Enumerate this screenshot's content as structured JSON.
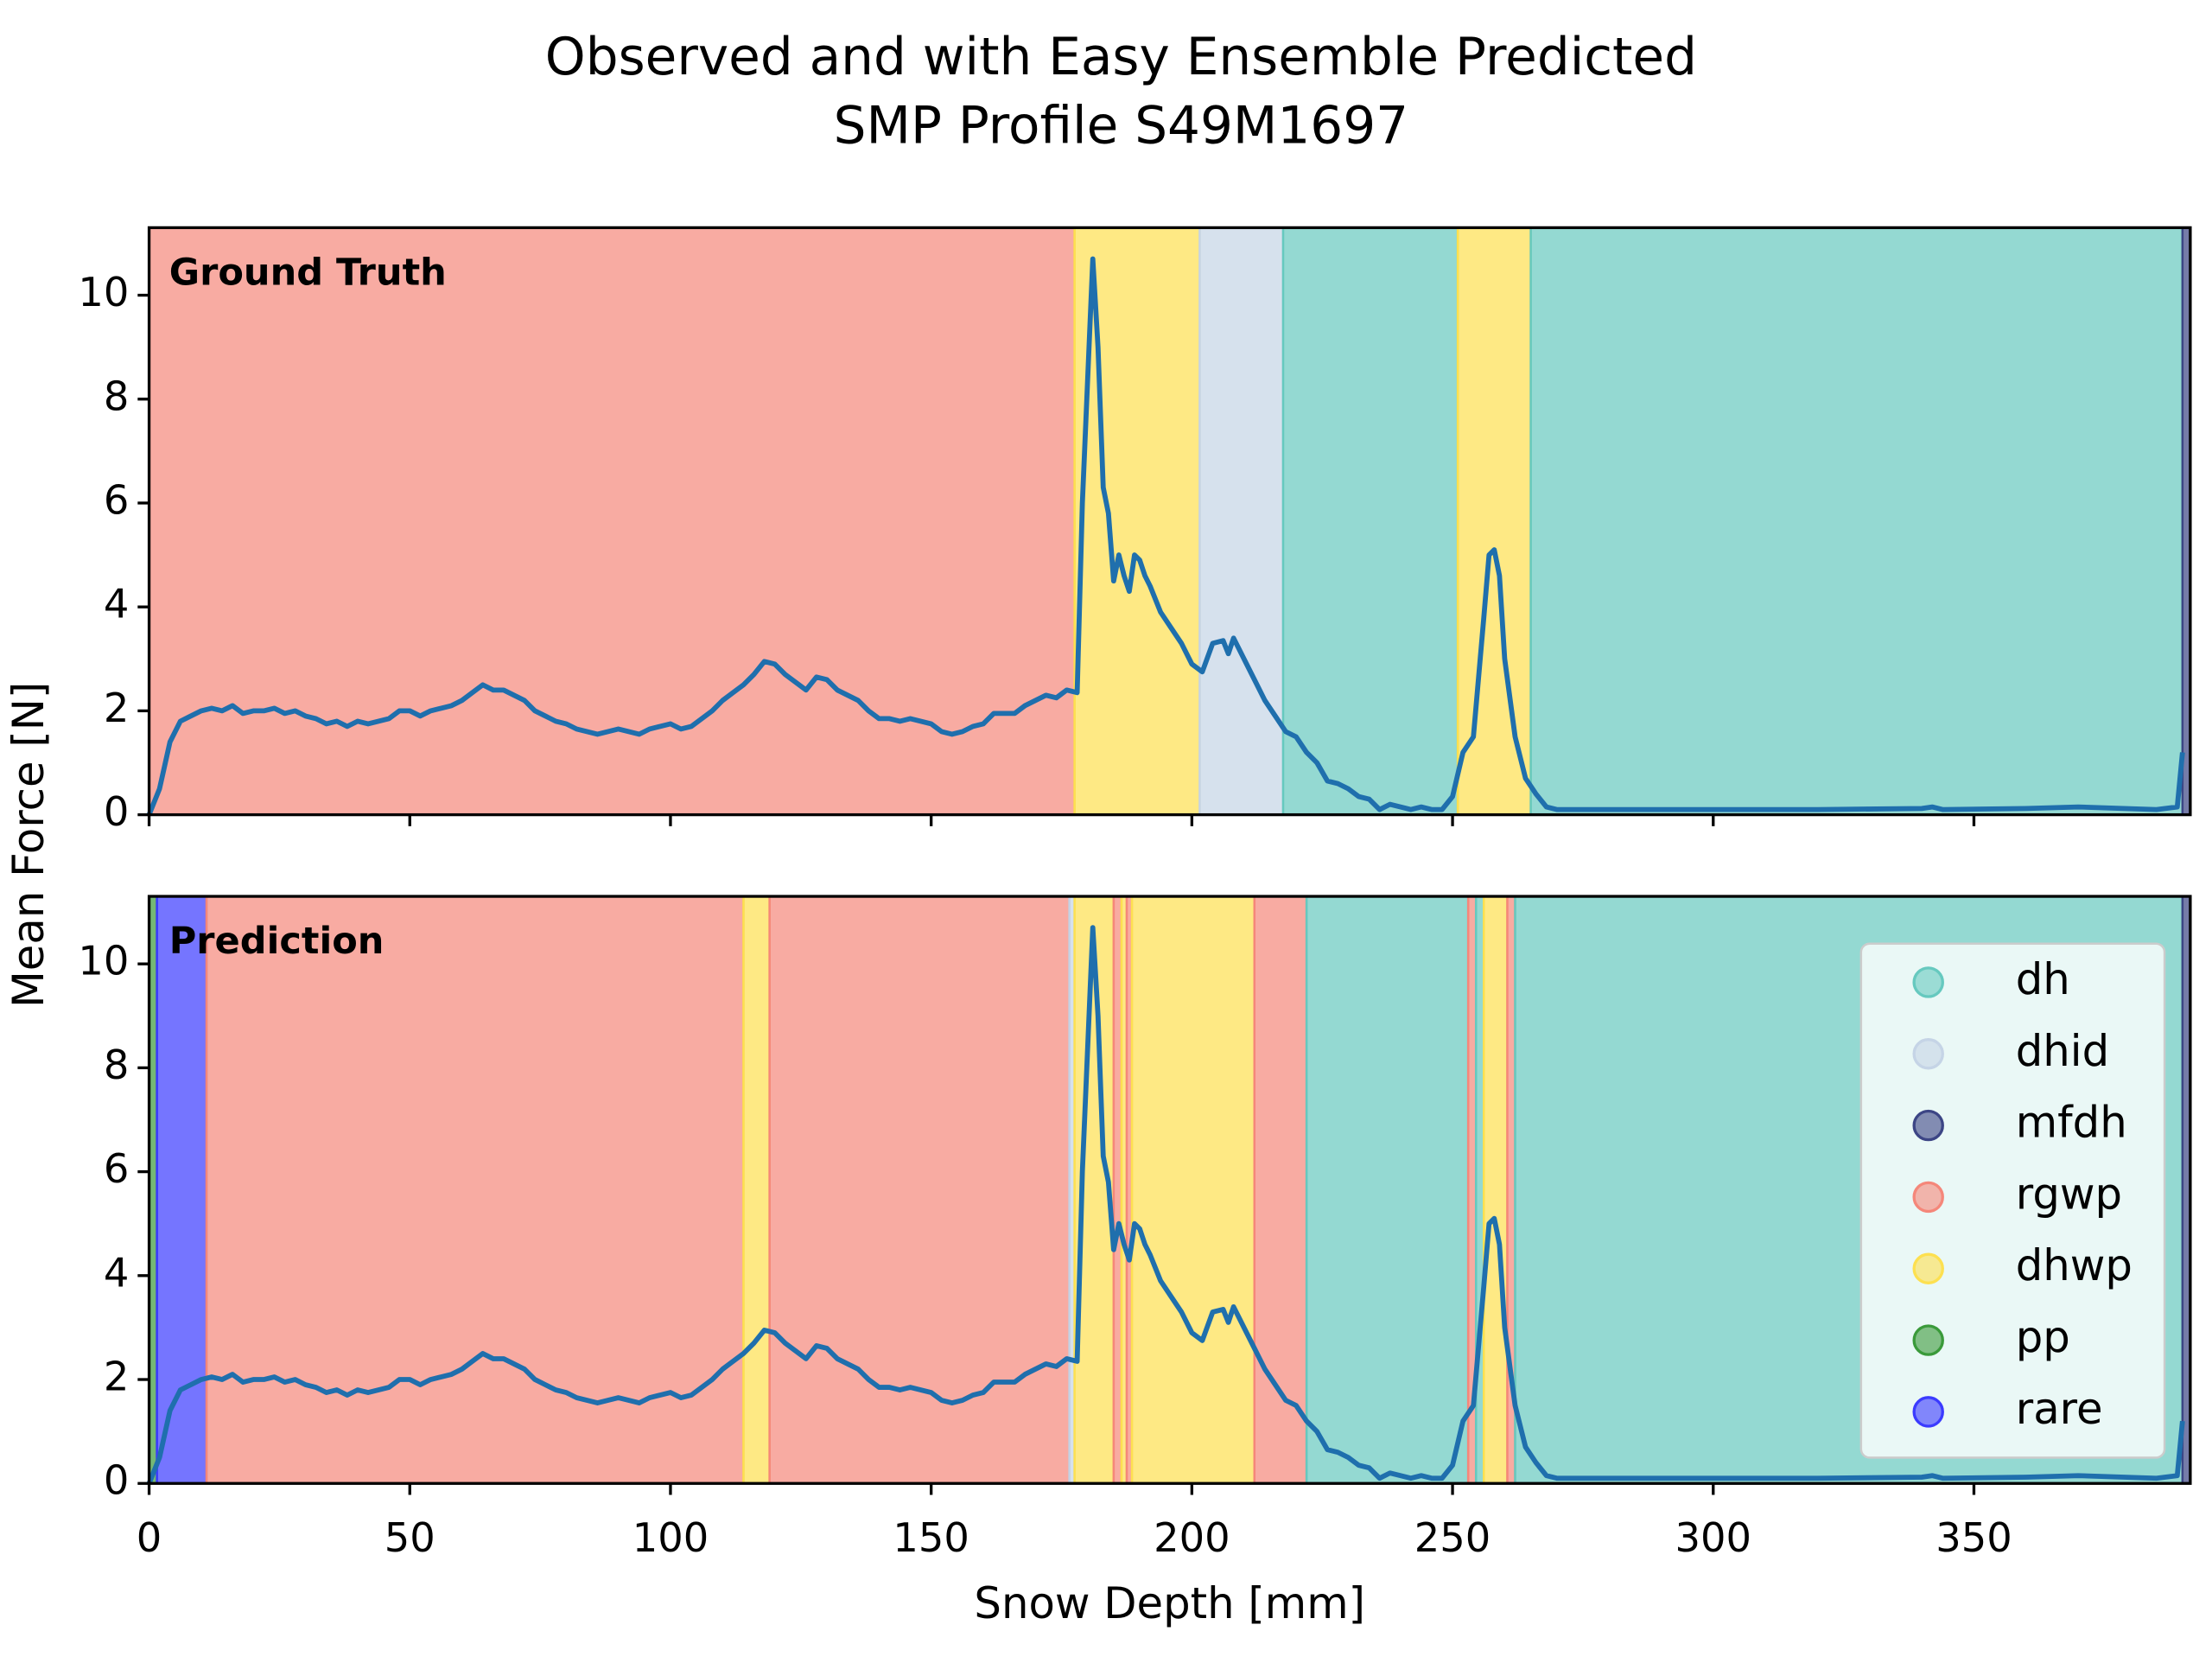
{
  "title": [
    "Observed and with Easy Ensemble Predicted",
    "SMP Profile S49M1697"
  ],
  "xlabel": "Snow Depth [mm]",
  "ylabel": "Mean Force [N]",
  "chart_data": [
    {
      "type": "line",
      "title": "Ground Truth",
      "xlim": [
        0,
        391.5
      ],
      "ylim": [
        0,
        11.3
      ],
      "xticks": [
        0,
        50,
        100,
        150,
        200,
        250,
        300,
        350
      ],
      "yticks": [
        0,
        2,
        4,
        6,
        8,
        10
      ],
      "segments": [
        {
          "start": 0,
          "end": 177.5,
          "class": "rgwp"
        },
        {
          "start": 177.5,
          "end": 201.5,
          "class": "dhwp"
        },
        {
          "start": 201.5,
          "end": 217.5,
          "class": "dhid"
        },
        {
          "start": 217.5,
          "end": 251,
          "class": "dh"
        },
        {
          "start": 251,
          "end": 265,
          "class": "dhwp"
        },
        {
          "start": 265,
          "end": 390,
          "class": "dh"
        },
        {
          "start": 390,
          "end": 391.5,
          "class": "mfdh"
        }
      ],
      "series": [
        {
          "color": "#1f6fad",
          "x": [
            0,
            2,
            4,
            6,
            8,
            10,
            12,
            14,
            16,
            18,
            20,
            22,
            24,
            26,
            28,
            30,
            32,
            34,
            36,
            38,
            40,
            42,
            44,
            46,
            48,
            50,
            52,
            54,
            56,
            58,
            60,
            62,
            64,
            66,
            68,
            70,
            72,
            74,
            76,
            78,
            80,
            82,
            84,
            86,
            88,
            90,
            92,
            94,
            96,
            98,
            100,
            102,
            104,
            106,
            108,
            110,
            112,
            114,
            116,
            118,
            120,
            122,
            124,
            126,
            128,
            130,
            132,
            134,
            136,
            138,
            140,
            142,
            144,
            146,
            148,
            150,
            152,
            154,
            156,
            158,
            160,
            162,
            164,
            166,
            168,
            170,
            172,
            174,
            176,
            178,
            179,
            181,
            182,
            183,
            184,
            185,
            186,
            187,
            188,
            189,
            190,
            191,
            192,
            194,
            196,
            198,
            200,
            202,
            204,
            206,
            207,
            208,
            210,
            212,
            214,
            216,
            218,
            220,
            222,
            224,
            226,
            228,
            230,
            232,
            234,
            236,
            238,
            240,
            242,
            244,
            246,
            248,
            250,
            252,
            254,
            256,
            257,
            258,
            259,
            260,
            262,
            264,
            266,
            268,
            270,
            280,
            300,
            320,
            340,
            342,
            344,
            360,
            370,
            385,
            389,
            390
          ],
          "values": [
            0.0,
            0.5,
            1.4,
            1.8,
            1.9,
            2.0,
            2.05,
            2.0,
            2.1,
            1.95,
            2.0,
            2.0,
            2.05,
            1.95,
            2.0,
            1.9,
            1.85,
            1.75,
            1.8,
            1.7,
            1.8,
            1.75,
            1.8,
            1.85,
            2.0,
            2.0,
            1.9,
            2.0,
            2.05,
            2.1,
            2.2,
            2.35,
            2.5,
            2.4,
            2.4,
            2.3,
            2.2,
            2.0,
            1.9,
            1.8,
            1.75,
            1.65,
            1.6,
            1.55,
            1.6,
            1.65,
            1.6,
            1.55,
            1.65,
            1.7,
            1.75,
            1.65,
            1.7,
            1.85,
            2.0,
            2.2,
            2.35,
            2.5,
            2.7,
            2.95,
            2.9,
            2.7,
            2.55,
            2.4,
            2.65,
            2.6,
            2.4,
            2.3,
            2.2,
            2.0,
            1.85,
            1.85,
            1.8,
            1.85,
            1.8,
            1.75,
            1.6,
            1.55,
            1.6,
            1.7,
            1.75,
            1.95,
            1.95,
            1.95,
            2.1,
            2.2,
            2.3,
            2.25,
            2.4,
            2.35,
            6.0,
            10.7,
            9.0,
            6.3,
            5.8,
            4.5,
            5.0,
            4.6,
            4.3,
            5.0,
            4.9,
            4.6,
            4.4,
            3.9,
            3.6,
            3.3,
            2.9,
            2.75,
            3.3,
            3.35,
            3.1,
            3.4,
            3.0,
            2.6,
            2.2,
            1.9,
            1.6,
            1.5,
            1.2,
            1.0,
            0.65,
            0.6,
            0.5,
            0.35,
            0.3,
            0.1,
            0.2,
            0.15,
            0.1,
            0.15,
            0.1,
            0.1,
            0.35,
            1.2,
            1.5,
            3.8,
            5.0,
            5.1,
            4.6,
            3.0,
            1.5,
            0.7,
            0.4,
            0.15,
            0.1,
            0.1,
            0.1,
            0.1,
            0.12,
            0.15,
            0.1,
            0.12,
            0.15,
            0.1,
            0.15,
            1.2
          ]
        }
      ]
    },
    {
      "type": "line",
      "title": "Prediction",
      "xlim": [
        0,
        391.5
      ],
      "ylim": [
        0,
        11.3
      ],
      "xticks": [
        0,
        50,
        100,
        150,
        200,
        250,
        300,
        350
      ],
      "yticks": [
        0,
        2,
        4,
        6,
        8,
        10
      ],
      "segments": [
        {
          "start": 0,
          "end": 1.5,
          "class": "pp"
        },
        {
          "start": 1.5,
          "end": 11,
          "class": "rare"
        },
        {
          "start": 11,
          "end": 114,
          "class": "rgwp"
        },
        {
          "start": 114,
          "end": 119,
          "class": "dhwp"
        },
        {
          "start": 119,
          "end": 176.5,
          "class": "rgwp"
        },
        {
          "start": 176.5,
          "end": 177.5,
          "class": "dhid"
        },
        {
          "start": 177.5,
          "end": 185,
          "class": "dhwp"
        },
        {
          "start": 185,
          "end": 186.5,
          "class": "rgwp"
        },
        {
          "start": 186.5,
          "end": 187.5,
          "class": "dhwp"
        },
        {
          "start": 187.5,
          "end": 188.5,
          "class": "rgwp"
        },
        {
          "start": 188.5,
          "end": 212,
          "class": "dhwp"
        },
        {
          "start": 212,
          "end": 222,
          "class": "rgwp"
        },
        {
          "start": 222,
          "end": 253,
          "class": "dh"
        },
        {
          "start": 253,
          "end": 254.5,
          "class": "rgwp"
        },
        {
          "start": 254.5,
          "end": 256,
          "class": "dh"
        },
        {
          "start": 256,
          "end": 260.5,
          "class": "dhwp"
        },
        {
          "start": 260.5,
          "end": 262,
          "class": "rgwp"
        },
        {
          "start": 262,
          "end": 390,
          "class": "dh"
        },
        {
          "start": 390,
          "end": 391.5,
          "class": "mfdh"
        }
      ],
      "series": [
        {
          "color": "#1f6fad",
          "x": [
            0,
            2,
            4,
            6,
            8,
            10,
            12,
            14,
            16,
            18,
            20,
            22,
            24,
            26,
            28,
            30,
            32,
            34,
            36,
            38,
            40,
            42,
            44,
            46,
            48,
            50,
            52,
            54,
            56,
            58,
            60,
            62,
            64,
            66,
            68,
            70,
            72,
            74,
            76,
            78,
            80,
            82,
            84,
            86,
            88,
            90,
            92,
            94,
            96,
            98,
            100,
            102,
            104,
            106,
            108,
            110,
            112,
            114,
            116,
            118,
            120,
            122,
            124,
            126,
            128,
            130,
            132,
            134,
            136,
            138,
            140,
            142,
            144,
            146,
            148,
            150,
            152,
            154,
            156,
            158,
            160,
            162,
            164,
            166,
            168,
            170,
            172,
            174,
            176,
            178,
            179,
            181,
            182,
            183,
            184,
            185,
            186,
            187,
            188,
            189,
            190,
            191,
            192,
            194,
            196,
            198,
            200,
            202,
            204,
            206,
            207,
            208,
            210,
            212,
            214,
            216,
            218,
            220,
            222,
            224,
            226,
            228,
            230,
            232,
            234,
            236,
            238,
            240,
            242,
            244,
            246,
            248,
            250,
            252,
            254,
            256,
            257,
            258,
            259,
            260,
            262,
            264,
            266,
            268,
            270,
            280,
            300,
            320,
            340,
            342,
            344,
            360,
            370,
            385,
            389,
            390
          ],
          "values": [
            0.0,
            0.5,
            1.4,
            1.8,
            1.9,
            2.0,
            2.05,
            2.0,
            2.1,
            1.95,
            2.0,
            2.0,
            2.05,
            1.95,
            2.0,
            1.9,
            1.85,
            1.75,
            1.8,
            1.7,
            1.8,
            1.75,
            1.8,
            1.85,
            2.0,
            2.0,
            1.9,
            2.0,
            2.05,
            2.1,
            2.2,
            2.35,
            2.5,
            2.4,
            2.4,
            2.3,
            2.2,
            2.0,
            1.9,
            1.8,
            1.75,
            1.65,
            1.6,
            1.55,
            1.6,
            1.65,
            1.6,
            1.55,
            1.65,
            1.7,
            1.75,
            1.65,
            1.7,
            1.85,
            2.0,
            2.2,
            2.35,
            2.5,
            2.7,
            2.95,
            2.9,
            2.7,
            2.55,
            2.4,
            2.65,
            2.6,
            2.4,
            2.3,
            2.2,
            2.0,
            1.85,
            1.85,
            1.8,
            1.85,
            1.8,
            1.75,
            1.6,
            1.55,
            1.6,
            1.7,
            1.75,
            1.95,
            1.95,
            1.95,
            2.1,
            2.2,
            2.3,
            2.25,
            2.4,
            2.35,
            6.0,
            10.7,
            9.0,
            6.3,
            5.8,
            4.5,
            5.0,
            4.6,
            4.3,
            5.0,
            4.9,
            4.6,
            4.4,
            3.9,
            3.6,
            3.3,
            2.9,
            2.75,
            3.3,
            3.35,
            3.1,
            3.4,
            3.0,
            2.6,
            2.2,
            1.9,
            1.6,
            1.5,
            1.2,
            1.0,
            0.65,
            0.6,
            0.5,
            0.35,
            0.3,
            0.1,
            0.2,
            0.15,
            0.1,
            0.15,
            0.1,
            0.1,
            0.35,
            1.2,
            1.5,
            3.8,
            5.0,
            5.1,
            4.6,
            3.0,
            1.5,
            0.7,
            0.4,
            0.15,
            0.1,
            0.1,
            0.1,
            0.1,
            0.12,
            0.15,
            0.1,
            0.12,
            0.15,
            0.1,
            0.15,
            1.2
          ]
        }
      ],
      "legend": [
        {
          "name": "dh",
          "color": "#66c9bf"
        },
        {
          "name": "dhid",
          "color": "#c5d4e6"
        },
        {
          "name": "mfdh",
          "color": "#3c4585"
        },
        {
          "name": "rgwp",
          "color": "#f5877a"
        },
        {
          "name": "dhwp",
          "color": "#fde050"
        },
        {
          "name": "pp",
          "color": "#3a9a3a"
        },
        {
          "name": "rare",
          "color": "#3b3bff"
        }
      ]
    }
  ]
}
